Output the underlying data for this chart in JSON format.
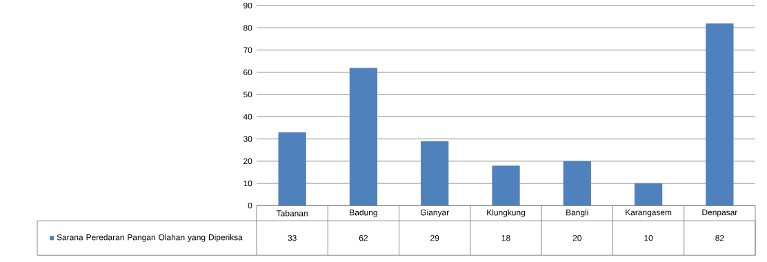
{
  "chart_data": {
    "type": "bar",
    "categories": [
      "Tabanan",
      "Badung",
      "Gianyar",
      "Klungkung",
      "Bangli",
      "Karangasem",
      "Denpasar"
    ],
    "series": [
      {
        "name": "Sarana Peredaran Pangan Olahan yang Diperiksa",
        "color": "#4f81bd",
        "values": [
          33,
          62,
          29,
          18,
          20,
          10,
          82
        ]
      }
    ],
    "ylim": [
      0,
      90
    ],
    "yticks": [
      0,
      10,
      20,
      30,
      40,
      50,
      60,
      70,
      80,
      90
    ],
    "grid": "y",
    "data_labels": true,
    "legend": "bottom"
  }
}
